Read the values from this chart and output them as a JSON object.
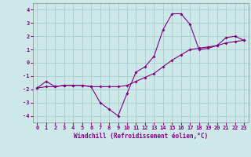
{
  "xlabel": "Windchill (Refroidissement éolien,°C)",
  "background_color": "#cce8e8",
  "grid_color": "#aacccc",
  "line_color": "#800080",
  "tick_color": "#800080",
  "xlim": [
    -0.5,
    23.5
  ],
  "ylim": [
    -4.5,
    4.5
  ],
  "yticks": [
    -4,
    -3,
    -2,
    -1,
    0,
    1,
    2,
    3,
    4
  ],
  "xticks": [
    0,
    1,
    2,
    3,
    4,
    5,
    6,
    7,
    8,
    9,
    10,
    11,
    12,
    13,
    14,
    15,
    16,
    17,
    18,
    19,
    20,
    21,
    22,
    23
  ],
  "curve1_x": [
    0,
    1,
    2,
    3,
    4,
    5,
    6,
    7,
    8,
    9,
    10,
    11,
    12,
    13,
    14,
    15,
    16,
    17,
    18,
    19,
    20,
    21,
    22,
    23
  ],
  "curve1_y": [
    -1.9,
    -1.4,
    -1.8,
    -1.7,
    -1.7,
    -1.7,
    -1.8,
    -3.0,
    -3.5,
    -4.0,
    -2.3,
    -0.7,
    -0.3,
    0.5,
    2.5,
    3.7,
    3.7,
    2.9,
    1.0,
    1.1,
    1.3,
    1.9,
    2.0,
    1.7
  ],
  "curve2_x": [
    0,
    1,
    2,
    3,
    4,
    5,
    6,
    7,
    8,
    9,
    10,
    11,
    12,
    13,
    14,
    15,
    16,
    17,
    18,
    19,
    20,
    21,
    22,
    23
  ],
  "curve2_y": [
    -1.9,
    -1.8,
    -1.8,
    -1.7,
    -1.7,
    -1.7,
    -1.8,
    -1.8,
    -1.8,
    -1.8,
    -1.7,
    -1.4,
    -1.1,
    -0.8,
    -0.3,
    0.2,
    0.6,
    1.0,
    1.1,
    1.2,
    1.3,
    1.5,
    1.6,
    1.7
  ],
  "xlabel_fontsize": 5.5,
  "tick_fontsize": 5,
  "marker_size": 2.0,
  "line_width": 0.8
}
